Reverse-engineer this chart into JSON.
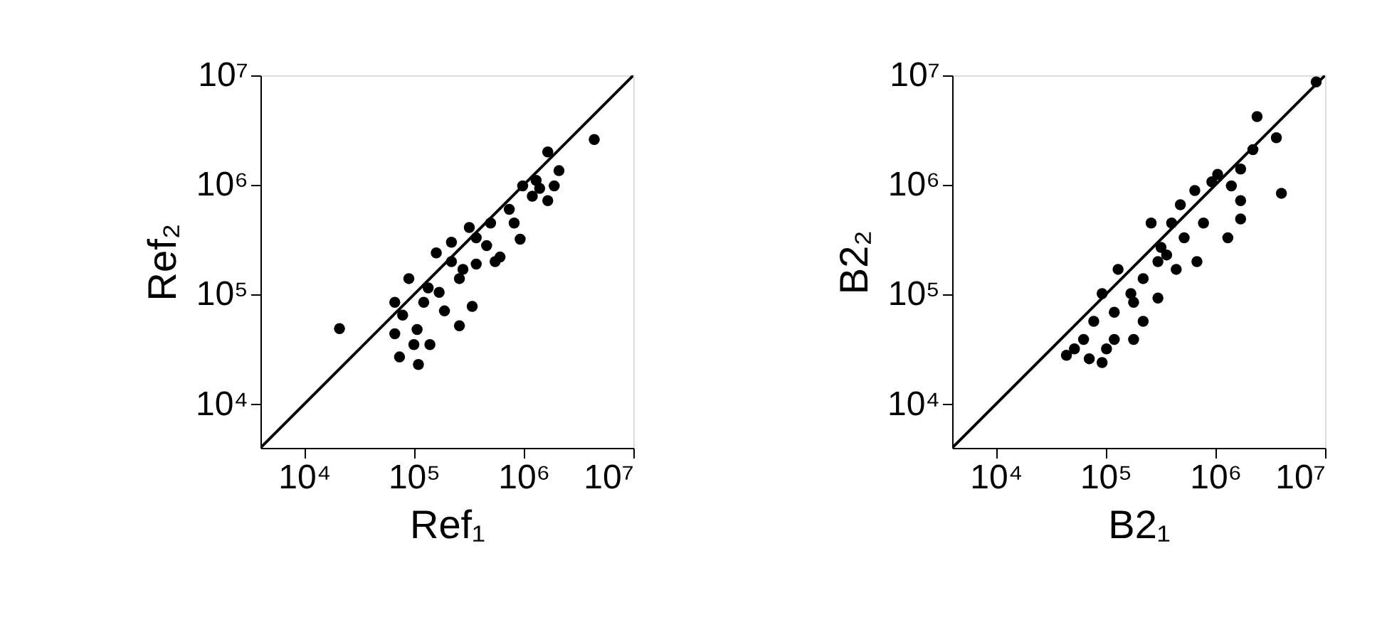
{
  "chart_data": [
    {
      "type": "scatter",
      "xlabel": "Ref₁",
      "ylabel": "Ref₂",
      "log": "xy",
      "grid": false,
      "xlim": [
        4000,
        10000000
      ],
      "ylim": [
        4000,
        10000000
      ],
      "xticks": [
        {
          "value": 10000,
          "label": "10⁴"
        },
        {
          "value": 100000,
          "label": "10⁵"
        },
        {
          "value": 1000000,
          "label": "10⁶"
        },
        {
          "value": 10000000,
          "label": "10⁷"
        }
      ],
      "yticks": [
        {
          "value": 10000,
          "label": "10⁴"
        },
        {
          "value": 100000,
          "label": "10⁵"
        },
        {
          "value": 1000000,
          "label": "10⁶"
        },
        {
          "value": 10000000,
          "label": "10⁷"
        }
      ],
      "series": [
        {
          "marker": "circle",
          "color": "#000000",
          "x": [
            21000,
            4400000,
            1660000,
            2100000,
            1300000,
            980000,
            1660000,
            1400000,
            740000,
            820000,
            930000,
            320000,
            220000,
            160000,
            550000,
            370000,
            340000,
            260000,
            90000,
            67000,
            135000,
            79000,
            107000,
            67000,
            74000,
            110000,
            140000,
            260000,
            190000,
            170000,
            280000,
            460000,
            610000,
            220000,
            123000,
            100000,
            370000,
            500000,
            1900000,
            1200000
          ],
          "values": [
            49000,
            2600000,
            2000000,
            1350000,
            1100000,
            980000,
            720000,
            930000,
            600000,
            450000,
            320000,
            410000,
            300000,
            240000,
            200000,
            190000,
            78000,
            140000,
            140000,
            85000,
            115000,
            65000,
            48000,
            44000,
            27000,
            23000,
            35000,
            52000,
            71000,
            105000,
            170000,
            280000,
            220000,
            200000,
            85000,
            35000,
            330000,
            450000,
            980000,
            790000
          ]
        },
        {
          "type": "line",
          "color": "#000000",
          "x": [
            4000,
            10000000
          ],
          "values": [
            4000,
            10000000
          ]
        }
      ]
    },
    {
      "type": "scatter",
      "xlabel": "B2₁",
      "ylabel": "B2₂",
      "log": "xy",
      "grid": false,
      "xlim": [
        4000,
        10000000
      ],
      "ylim": [
        4000,
        10000000
      ],
      "xticks": [
        {
          "value": 10000,
          "label": "10⁴"
        },
        {
          "value": 100000,
          "label": "10⁵"
        },
        {
          "value": 1000000,
          "label": "10⁶"
        },
        {
          "value": 10000000,
          "label": "10⁷"
        }
      ],
      "yticks": [
        {
          "value": 10000,
          "label": "10⁴"
        },
        {
          "value": 100000,
          "label": "10⁵"
        },
        {
          "value": 1000000,
          "label": "10⁶"
        },
        {
          "value": 10000000,
          "label": "10⁷"
        }
      ],
      "series": [
        {
          "marker": "circle",
          "color": "#000000",
          "x": [
            8300000,
            2400000,
            3600000,
            4000000,
            2200000,
            1700000,
            1050000,
            1400000,
            1700000,
            1700000,
            1300000,
            650000,
            480000,
            260000,
            400000,
            780000,
            520000,
            320000,
            680000,
            440000,
            300000,
            130000,
            220000,
            170000,
            93000,
            300000,
            120000,
            220000,
            78000,
            180000,
            120000,
            52000,
            44000,
            71000,
            93000,
            102000,
            63000,
            360000,
            180000,
            930000
          ],
          "values": [
            8700000,
            4200000,
            2700000,
            840000,
            2100000,
            1400000,
            1250000,
            980000,
            720000,
            490000,
            330000,
            890000,
            660000,
            450000,
            450000,
            450000,
            330000,
            270000,
            200000,
            170000,
            200000,
            170000,
            140000,
            102000,
            102000,
            93000,
            69000,
            57000,
            57000,
            39000,
            39000,
            32000,
            28000,
            26000,
            24000,
            32000,
            39000,
            230000,
            85000,
            1070000
          ]
        },
        {
          "type": "line",
          "color": "#000000",
          "x": [
            4000,
            10000000
          ],
          "values": [
            4000,
            10000000
          ]
        }
      ]
    }
  ]
}
